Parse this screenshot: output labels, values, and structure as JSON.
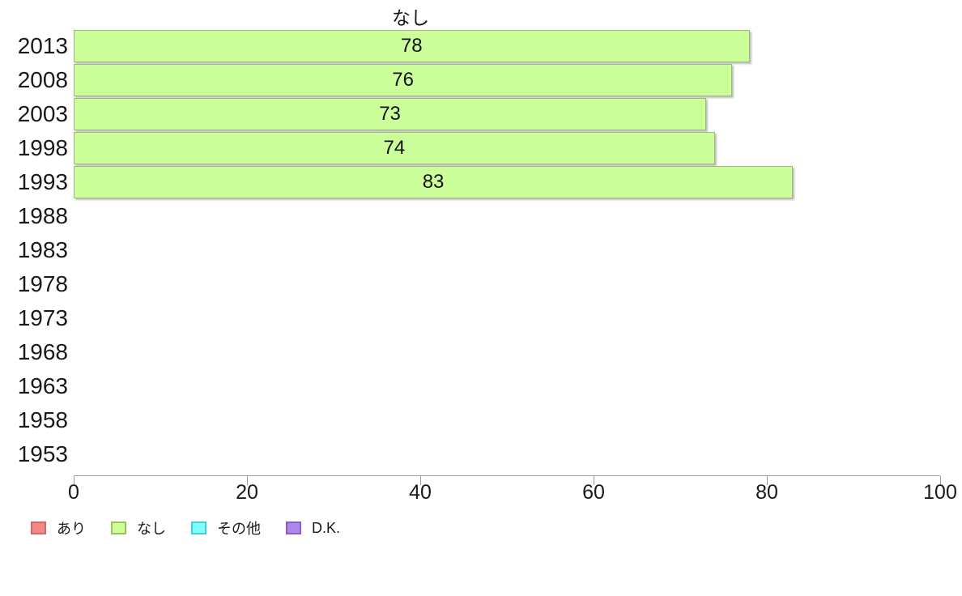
{
  "chart_data": {
    "type": "bar",
    "orientation": "horizontal",
    "title": "なし",
    "categories": [
      "2013",
      "2008",
      "2003",
      "1998",
      "1993",
      "1988",
      "1983",
      "1978",
      "1973",
      "1968",
      "1963",
      "1958",
      "1953"
    ],
    "values": [
      78,
      76,
      73,
      74,
      83,
      null,
      null,
      null,
      null,
      null,
      null,
      null,
      null
    ],
    "xlabel": "",
    "ylabel": "",
    "xlim": [
      0,
      100
    ],
    "x_ticks": [
      "0",
      "20",
      "40",
      "60",
      "80",
      "100"
    ],
    "x_tick_values": [
      0,
      20,
      40,
      60,
      80,
      100
    ],
    "grid": false,
    "bar_fill_color": "#ccff99",
    "bar_border_color": "#9fb582",
    "axis_color": "#999999",
    "legend_position": "bottom",
    "legend": [
      {
        "label": "あり",
        "fill": "#f08a8a",
        "border": "#d26a6a"
      },
      {
        "label": "なし",
        "fill": "#ccff99",
        "border": "#9cc25e"
      },
      {
        "label": "その他",
        "fill": "#80ffff",
        "border": "#45cfcf"
      },
      {
        "label": "D.K.",
        "fill": "#ae86ec",
        "border": "#8a5ccc"
      }
    ]
  }
}
